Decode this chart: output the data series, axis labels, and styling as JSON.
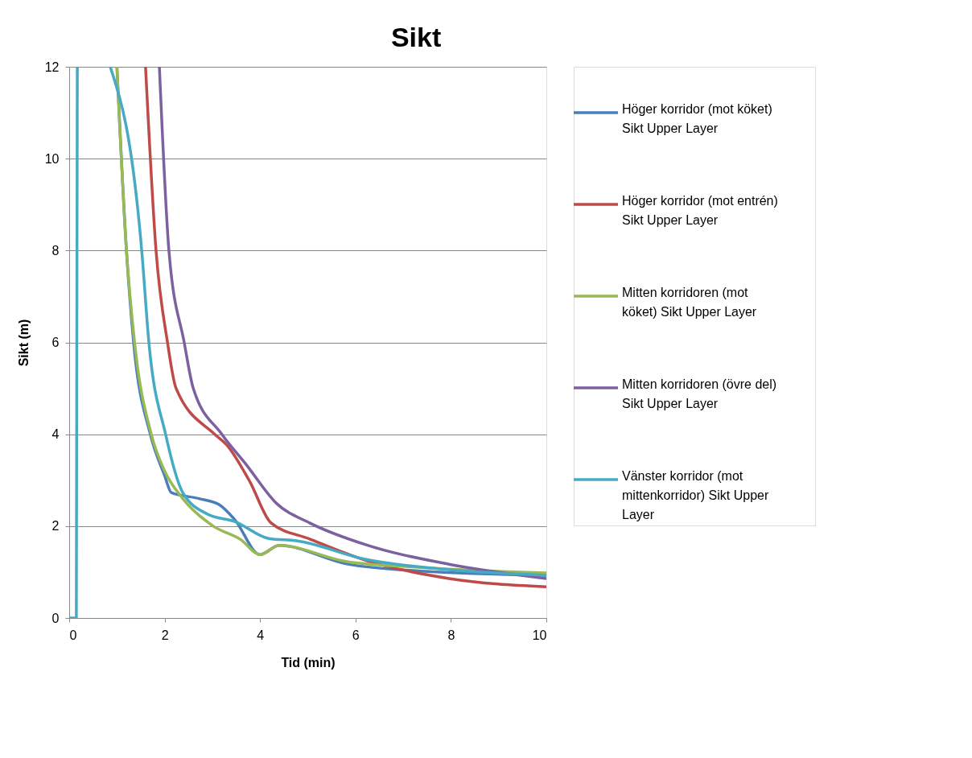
{
  "chart_data": {
    "type": "line",
    "title": "Sikt",
    "xlabel": "Tid (min)",
    "ylabel": "Sikt (m)",
    "xlim": [
      0,
      10
    ],
    "ylim": [
      0,
      12
    ],
    "xticks": [
      0,
      2,
      4,
      6,
      8,
      10
    ],
    "yticks": [
      0,
      2,
      4,
      6,
      8,
      10,
      12
    ],
    "grid": "y",
    "legend": "right",
    "line_style": "solid",
    "marker": "none",
    "series": [
      {
        "name": "Höger korridor (mot köket) Sikt Upper Layer",
        "color": "#4a7ebb",
        "x": [
          1.0,
          1.2,
          1.35,
          1.7,
          2.0,
          2.14,
          2.72,
          3.14,
          3.47,
          4.0,
          4.4,
          5.8,
          7.37,
          10
        ],
        "values": [
          12,
          8,
          6,
          4,
          3.1,
          2.73,
          2.6,
          2.47,
          2.14,
          1.38,
          1.58,
          1.18,
          1.02,
          0.93
        ]
      },
      {
        "name": "Höger korridor (mot entrén) Sikt Upper Layer",
        "color": "#be4b48",
        "x": [
          1.6,
          1.82,
          2.06,
          2.24,
          3.05,
          3.3,
          3.78,
          4.23,
          5.04,
          6.2,
          7.96,
          10
        ],
        "values": [
          12,
          8,
          6,
          5.0,
          4,
          3.77,
          2.98,
          2.07,
          1.72,
          1.26,
          0.86,
          0.68
        ]
      },
      {
        "name": "Mitten korridoren (mot köket) Sikt Upper Layer",
        "color": "#98b954",
        "x": [
          1.0,
          1.2,
          1.37,
          1.72,
          2.0,
          2.38,
          3.02,
          3.59,
          4.0,
          4.4,
          5.8,
          7.37,
          10
        ],
        "values": [
          12,
          8,
          6,
          4,
          3.2,
          2.6,
          2.0,
          1.71,
          1.38,
          1.58,
          1.23,
          1.1,
          0.98
        ]
      },
      {
        "name": "Mitten korridoren (övre del) Sikt Upper Layer",
        "color": "#7d60a0",
        "x": [
          1.89,
          2.09,
          2.41,
          2.6,
          3.2,
          3.71,
          4.35,
          5.04,
          6.2,
          7.96,
          10
        ],
        "values": [
          12,
          8,
          6,
          5,
          4,
          3.34,
          2.49,
          2.07,
          1.6,
          1.17,
          0.86
        ]
      },
      {
        "name": "Vänster korridor (mot mittenkorridor) Sikt Upper Layer",
        "color": "#46aac5",
        "x": [
          0,
          0.15,
          0.17,
          0.5,
          0.86,
          1.52,
          1.67,
          2.02,
          2.38,
          2.9,
          3.47,
          4.18,
          4.76,
          6.2,
          7.96,
          10
        ],
        "values": [
          0,
          0,
          12,
          null,
          12,
          8,
          6,
          4,
          2.73,
          2.26,
          2.1,
          1.73,
          1.68,
          1.28,
          1.05,
          0.93
        ]
      }
    ]
  }
}
